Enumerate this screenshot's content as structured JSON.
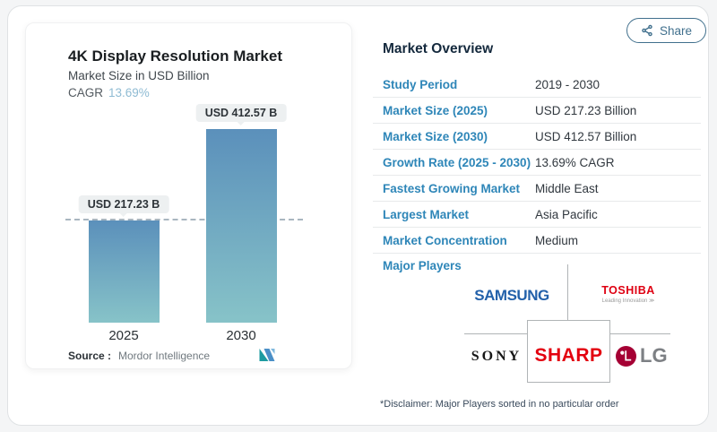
{
  "share": {
    "label": "Share"
  },
  "chart_card": {
    "title": "4K Display Resolution Market",
    "subtitle": "Market Size in USD Billion",
    "cagr_label": "CAGR",
    "cagr_value": "13.69%",
    "source_label": "Source :",
    "source_value": "Mordor Intelligence"
  },
  "chart_data": {
    "type": "bar",
    "title": "4K Display Resolution Market",
    "subtitle": "Market Size in USD Billion",
    "unit": "USD Billion",
    "categories": [
      "2025",
      "2030"
    ],
    "values": [
      217.23,
      412.57
    ],
    "value_labels": [
      "USD 217.23 B",
      "USD 412.57 B"
    ],
    "cagr": "13.69%",
    "ylim": [
      0,
      460
    ],
    "grid": false,
    "legend": "none",
    "reference_line": {
      "y": 217.23,
      "style": "dashed"
    },
    "bar_gradient_top": "#5b90bb",
    "bar_gradient_bottom": "#87c3c8"
  },
  "overview": {
    "heading": "Market Overview",
    "rows": [
      {
        "label": "Study Period",
        "value": "2019 - 2030"
      },
      {
        "label": "Market Size (2025)",
        "value": "USD 217.23 Billion"
      },
      {
        "label": "Market Size (2030)",
        "value": "USD 412.57 Billion"
      },
      {
        "label": "Growth Rate (2025 - 2030)",
        "value": "13.69% CAGR"
      },
      {
        "label": "Fastest Growing Market",
        "value": "Middle East"
      },
      {
        "label": "Largest Market",
        "value": "Asia Pacific"
      },
      {
        "label": "Market Concentration",
        "value": "Medium"
      }
    ],
    "major_players_label": "Major Players",
    "players": {
      "samsung": "SAMSUNG",
      "toshiba": "TOSHIBA",
      "toshiba_tagline": "Leading Innovation ≫",
      "sony": "SONY",
      "sharp": "SHARP",
      "lg": "LG"
    },
    "disclaimer": "*Disclaimer: Major Players sorted in no particular order"
  },
  "icons": {
    "share": "share-nodes-icon",
    "mordor": "mordor-intelligence-logo",
    "lg_mark": "lg-face-icon"
  },
  "colors": {
    "label_blue": "#2e86b8",
    "heading_navy": "#14293d",
    "share_blue": "#41708d",
    "cagr_blue": "#8fbbd3",
    "samsung_blue": "#2361aa",
    "toshiba_red": "#df0012",
    "sharp_red": "#e3000f",
    "lg_magenta": "#a50034",
    "bar_top": "#5b90bb",
    "bar_bottom": "#87c3c8",
    "refline_gray": "#a9b6c0"
  }
}
